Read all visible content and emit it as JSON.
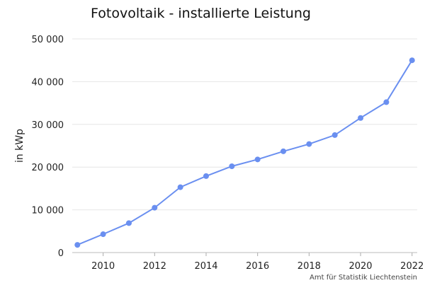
{
  "chart_data": {
    "type": "line",
    "title": "Fotovoltaik - installierte Leistung",
    "xlabel": "",
    "ylabel": "in kWp",
    "xlim": [
      2008.8,
      2022.2
    ],
    "ylim": [
      0,
      50000
    ],
    "grid": true,
    "x_ticks": [
      2010,
      2012,
      2014,
      2016,
      2018,
      2020,
      2022
    ],
    "y_ticks": [
      0,
      10000,
      20000,
      30000,
      40000,
      50000
    ],
    "y_tick_labels": [
      "0",
      "10 000",
      "20 000",
      "30 000",
      "40 000",
      "50 000"
    ],
    "series": [
      {
        "color": "#6a8ff0",
        "x": [
          2009,
          2010,
          2011,
          2012,
          2013,
          2014,
          2015,
          2016,
          2017,
          2018,
          2019,
          2020,
          2021,
          2022
        ],
        "values": [
          1800,
          4300,
          6900,
          10500,
          15300,
          17900,
          20200,
          21800,
          23700,
          25400,
          27500,
          31500,
          35200,
          45000
        ]
      }
    ],
    "source": "Amt für Statistik Liechtenstein"
  }
}
